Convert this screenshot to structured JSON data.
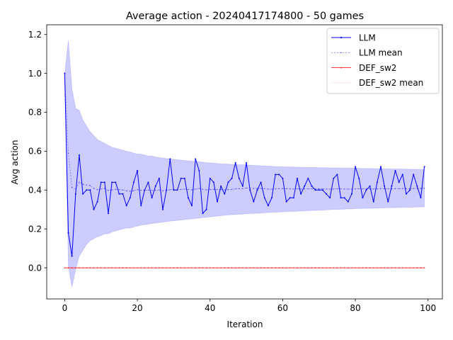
{
  "chart_data": {
    "type": "line",
    "title": "Average action - 20240417174800 - 50 games",
    "xlabel": "Iteration",
    "ylabel": "Avg action",
    "xlim": [
      -4.95,
      103.95
    ],
    "ylim": [
      -0.16,
      1.25
    ],
    "xticks": [
      0,
      20,
      40,
      60,
      80,
      100
    ],
    "yticks": [
      0.0,
      0.2,
      0.4,
      0.6,
      0.8,
      1.0,
      1.2
    ],
    "xtick_labels": [
      "0",
      "20",
      "40",
      "60",
      "80",
      "100"
    ],
    "ytick_labels": [
      "0.0",
      "0.2",
      "0.4",
      "0.6",
      "0.8",
      "1.0",
      "1.2"
    ],
    "legend_position": "top-right",
    "x": [
      0,
      1,
      2,
      3,
      4,
      5,
      6,
      7,
      8,
      9,
      10,
      11,
      12,
      13,
      14,
      15,
      16,
      17,
      18,
      19,
      20,
      21,
      22,
      23,
      24,
      25,
      26,
      27,
      28,
      29,
      30,
      31,
      32,
      33,
      34,
      35,
      36,
      37,
      38,
      39,
      40,
      41,
      42,
      43,
      44,
      45,
      46,
      47,
      48,
      49,
      50,
      51,
      52,
      53,
      54,
      55,
      56,
      57,
      58,
      59,
      60,
      61,
      62,
      63,
      64,
      65,
      66,
      67,
      68,
      69,
      70,
      71,
      72,
      73,
      74,
      75,
      76,
      77,
      78,
      79,
      80,
      81,
      82,
      83,
      84,
      85,
      86,
      87,
      88,
      89,
      90,
      91,
      92,
      93,
      94,
      95,
      96,
      97,
      98,
      99
    ],
    "series": [
      {
        "name": "LLM",
        "color": "#0000ff",
        "values": [
          1.0,
          0.18,
          0.06,
          0.38,
          0.58,
          0.38,
          0.4,
          0.4,
          0.3,
          0.34,
          0.44,
          0.44,
          0.28,
          0.44,
          0.44,
          0.38,
          0.38,
          0.32,
          0.36,
          0.44,
          0.5,
          0.32,
          0.4,
          0.44,
          0.36,
          0.42,
          0.46,
          0.3,
          0.4,
          0.56,
          0.4,
          0.4,
          0.46,
          0.46,
          0.36,
          0.32,
          0.56,
          0.5,
          0.28,
          0.3,
          0.46,
          0.44,
          0.34,
          0.42,
          0.38,
          0.44,
          0.46,
          0.54,
          0.46,
          0.42,
          0.54,
          0.4,
          0.34,
          0.4,
          0.44,
          0.36,
          0.32,
          0.36,
          0.48,
          0.48,
          0.46,
          0.34,
          0.36,
          0.36,
          0.46,
          0.38,
          0.42,
          0.46,
          0.42,
          0.4,
          0.4,
          0.4,
          0.38,
          0.36,
          0.46,
          0.48,
          0.36,
          0.36,
          0.34,
          0.38,
          0.52,
          0.46,
          0.36,
          0.4,
          0.42,
          0.34,
          0.44,
          0.52,
          0.42,
          0.34,
          0.42,
          0.5,
          0.44,
          0.48,
          0.38,
          0.4,
          0.48,
          0.42,
          0.36,
          0.52
        ]
      },
      {
        "name": "LLM mean",
        "color": "#0000ff",
        "values": [
          1.0,
          0.59,
          0.413,
          0.405,
          0.44,
          0.43,
          0.426,
          0.423,
          0.409,
          0.402,
          0.405,
          0.408,
          0.398,
          0.401,
          0.403,
          0.402,
          0.4,
          0.396,
          0.394,
          0.397,
          0.402,
          0.398,
          0.398,
          0.4,
          0.398,
          0.399,
          0.401,
          0.397,
          0.397,
          0.402,
          0.402,
          0.401,
          0.403,
          0.405,
          0.403,
          0.401,
          0.405,
          0.408,
          0.404,
          0.401,
          0.403,
          0.404,
          0.402,
          0.402,
          0.401,
          0.402,
          0.403,
          0.406,
          0.407,
          0.407,
          0.41,
          0.41,
          0.408,
          0.408,
          0.408,
          0.407,
          0.405,
          0.404,
          0.406,
          0.407,
          0.408,
          0.407,
          0.406,
          0.405,
          0.406,
          0.405,
          0.406,
          0.406,
          0.406,
          0.406,
          0.406,
          0.406,
          0.405,
          0.405,
          0.405,
          0.406,
          0.406,
          0.405,
          0.405,
          0.404,
          0.406,
          0.406,
          0.406,
          0.406,
          0.406,
          0.405,
          0.406,
          0.407,
          0.407,
          0.406,
          0.406,
          0.407,
          0.407,
          0.408,
          0.407,
          0.407,
          0.408,
          0.408,
          0.408,
          0.409
        ]
      },
      {
        "name": "DEF_sw2",
        "color": "#ff0000",
        "values": [
          0,
          0,
          0,
          0,
          0,
          0,
          0,
          0,
          0,
          0,
          0,
          0,
          0,
          0,
          0,
          0,
          0,
          0,
          0,
          0,
          0,
          0,
          0,
          0,
          0,
          0,
          0,
          0,
          0,
          0,
          0,
          0,
          0,
          0,
          0,
          0,
          0,
          0,
          0,
          0,
          0,
          0,
          0,
          0,
          0,
          0,
          0,
          0,
          0,
          0,
          0,
          0,
          0,
          0,
          0,
          0,
          0,
          0,
          0,
          0,
          0,
          0,
          0,
          0,
          0,
          0,
          0,
          0,
          0,
          0,
          0,
          0,
          0,
          0,
          0,
          0,
          0,
          0,
          0,
          0,
          0,
          0,
          0,
          0,
          0,
          0,
          0,
          0,
          0,
          0,
          0,
          0,
          0,
          0,
          0,
          0,
          0,
          0,
          0,
          0
        ]
      },
      {
        "name": "DEF_sw2 mean",
        "color": "#ffc0cb",
        "values": [
          0,
          0,
          0,
          0,
          0,
          0,
          0,
          0,
          0,
          0,
          0,
          0,
          0,
          0,
          0,
          0,
          0,
          0,
          0,
          0,
          0,
          0,
          0,
          0,
          0,
          0,
          0,
          0,
          0,
          0,
          0,
          0,
          0,
          0,
          0,
          0,
          0,
          0,
          0,
          0,
          0,
          0,
          0,
          0,
          0,
          0,
          0,
          0,
          0,
          0,
          0,
          0,
          0,
          0,
          0,
          0,
          0,
          0,
          0,
          0,
          0,
          0,
          0,
          0,
          0,
          0,
          0,
          0,
          0,
          0,
          0,
          0,
          0,
          0,
          0,
          0,
          0,
          0,
          0,
          0,
          0,
          0,
          0,
          0,
          0,
          0,
          0,
          0,
          0,
          0,
          0,
          0,
          0,
          0,
          0,
          0,
          0,
          0,
          0,
          0
        ]
      }
    ],
    "band": {
      "color": "#0000ff",
      "upper": [
        1.0,
        1.17,
        0.92,
        0.82,
        0.81,
        0.76,
        0.73,
        0.7,
        0.68,
        0.66,
        0.65,
        0.64,
        0.63,
        0.62,
        0.615,
        0.61,
        0.605,
        0.6,
        0.595,
        0.59,
        0.585,
        0.585,
        0.58,
        0.575,
        0.575,
        0.57,
        0.567,
        0.565,
        0.562,
        0.56,
        0.558,
        0.556,
        0.554,
        0.552,
        0.55,
        0.548,
        0.547,
        0.545,
        0.543,
        0.541,
        0.54,
        0.538,
        0.537,
        0.535,
        0.534,
        0.533,
        0.532,
        0.531,
        0.53,
        0.53,
        0.53,
        0.528,
        0.527,
        0.526,
        0.525,
        0.524,
        0.523,
        0.522,
        0.521,
        0.52,
        0.52,
        0.519,
        0.519,
        0.518,
        0.518,
        0.517,
        0.517,
        0.516,
        0.516,
        0.516,
        0.515,
        0.515,
        0.515,
        0.514,
        0.514,
        0.514,
        0.513,
        0.513,
        0.513,
        0.512,
        0.512,
        0.512,
        0.511,
        0.511,
        0.511,
        0.51,
        0.51,
        0.51,
        0.509,
        0.509,
        0.509,
        0.508,
        0.508,
        0.508,
        0.507,
        0.507,
        0.507,
        0.506,
        0.506,
        0.506
      ],
      "lower": [
        1.0,
        0.01,
        -0.1,
        -0.01,
        0.06,
        0.09,
        0.12,
        0.14,
        0.15,
        0.16,
        0.165,
        0.175,
        0.175,
        0.185,
        0.19,
        0.195,
        0.2,
        0.205,
        0.205,
        0.21,
        0.215,
        0.22,
        0.222,
        0.225,
        0.228,
        0.23,
        0.233,
        0.235,
        0.238,
        0.24,
        0.242,
        0.244,
        0.246,
        0.248,
        0.25,
        0.252,
        0.254,
        0.256,
        0.258,
        0.26,
        0.262,
        0.264,
        0.266,
        0.268,
        0.27,
        0.272,
        0.273,
        0.274,
        0.275,
        0.276,
        0.278,
        0.279,
        0.28,
        0.281,
        0.282,
        0.283,
        0.284,
        0.285,
        0.286,
        0.287,
        0.288,
        0.289,
        0.29,
        0.29,
        0.291,
        0.292,
        0.293,
        0.294,
        0.295,
        0.295,
        0.296,
        0.297,
        0.298,
        0.299,
        0.3,
        0.3,
        0.301,
        0.302,
        0.303,
        0.303,
        0.304,
        0.305,
        0.305,
        0.306,
        0.306,
        0.307,
        0.307,
        0.308,
        0.308,
        0.309,
        0.309,
        0.31,
        0.31,
        0.311,
        0.311,
        0.312,
        0.312,
        0.313,
        0.313,
        0.314
      ]
    }
  }
}
